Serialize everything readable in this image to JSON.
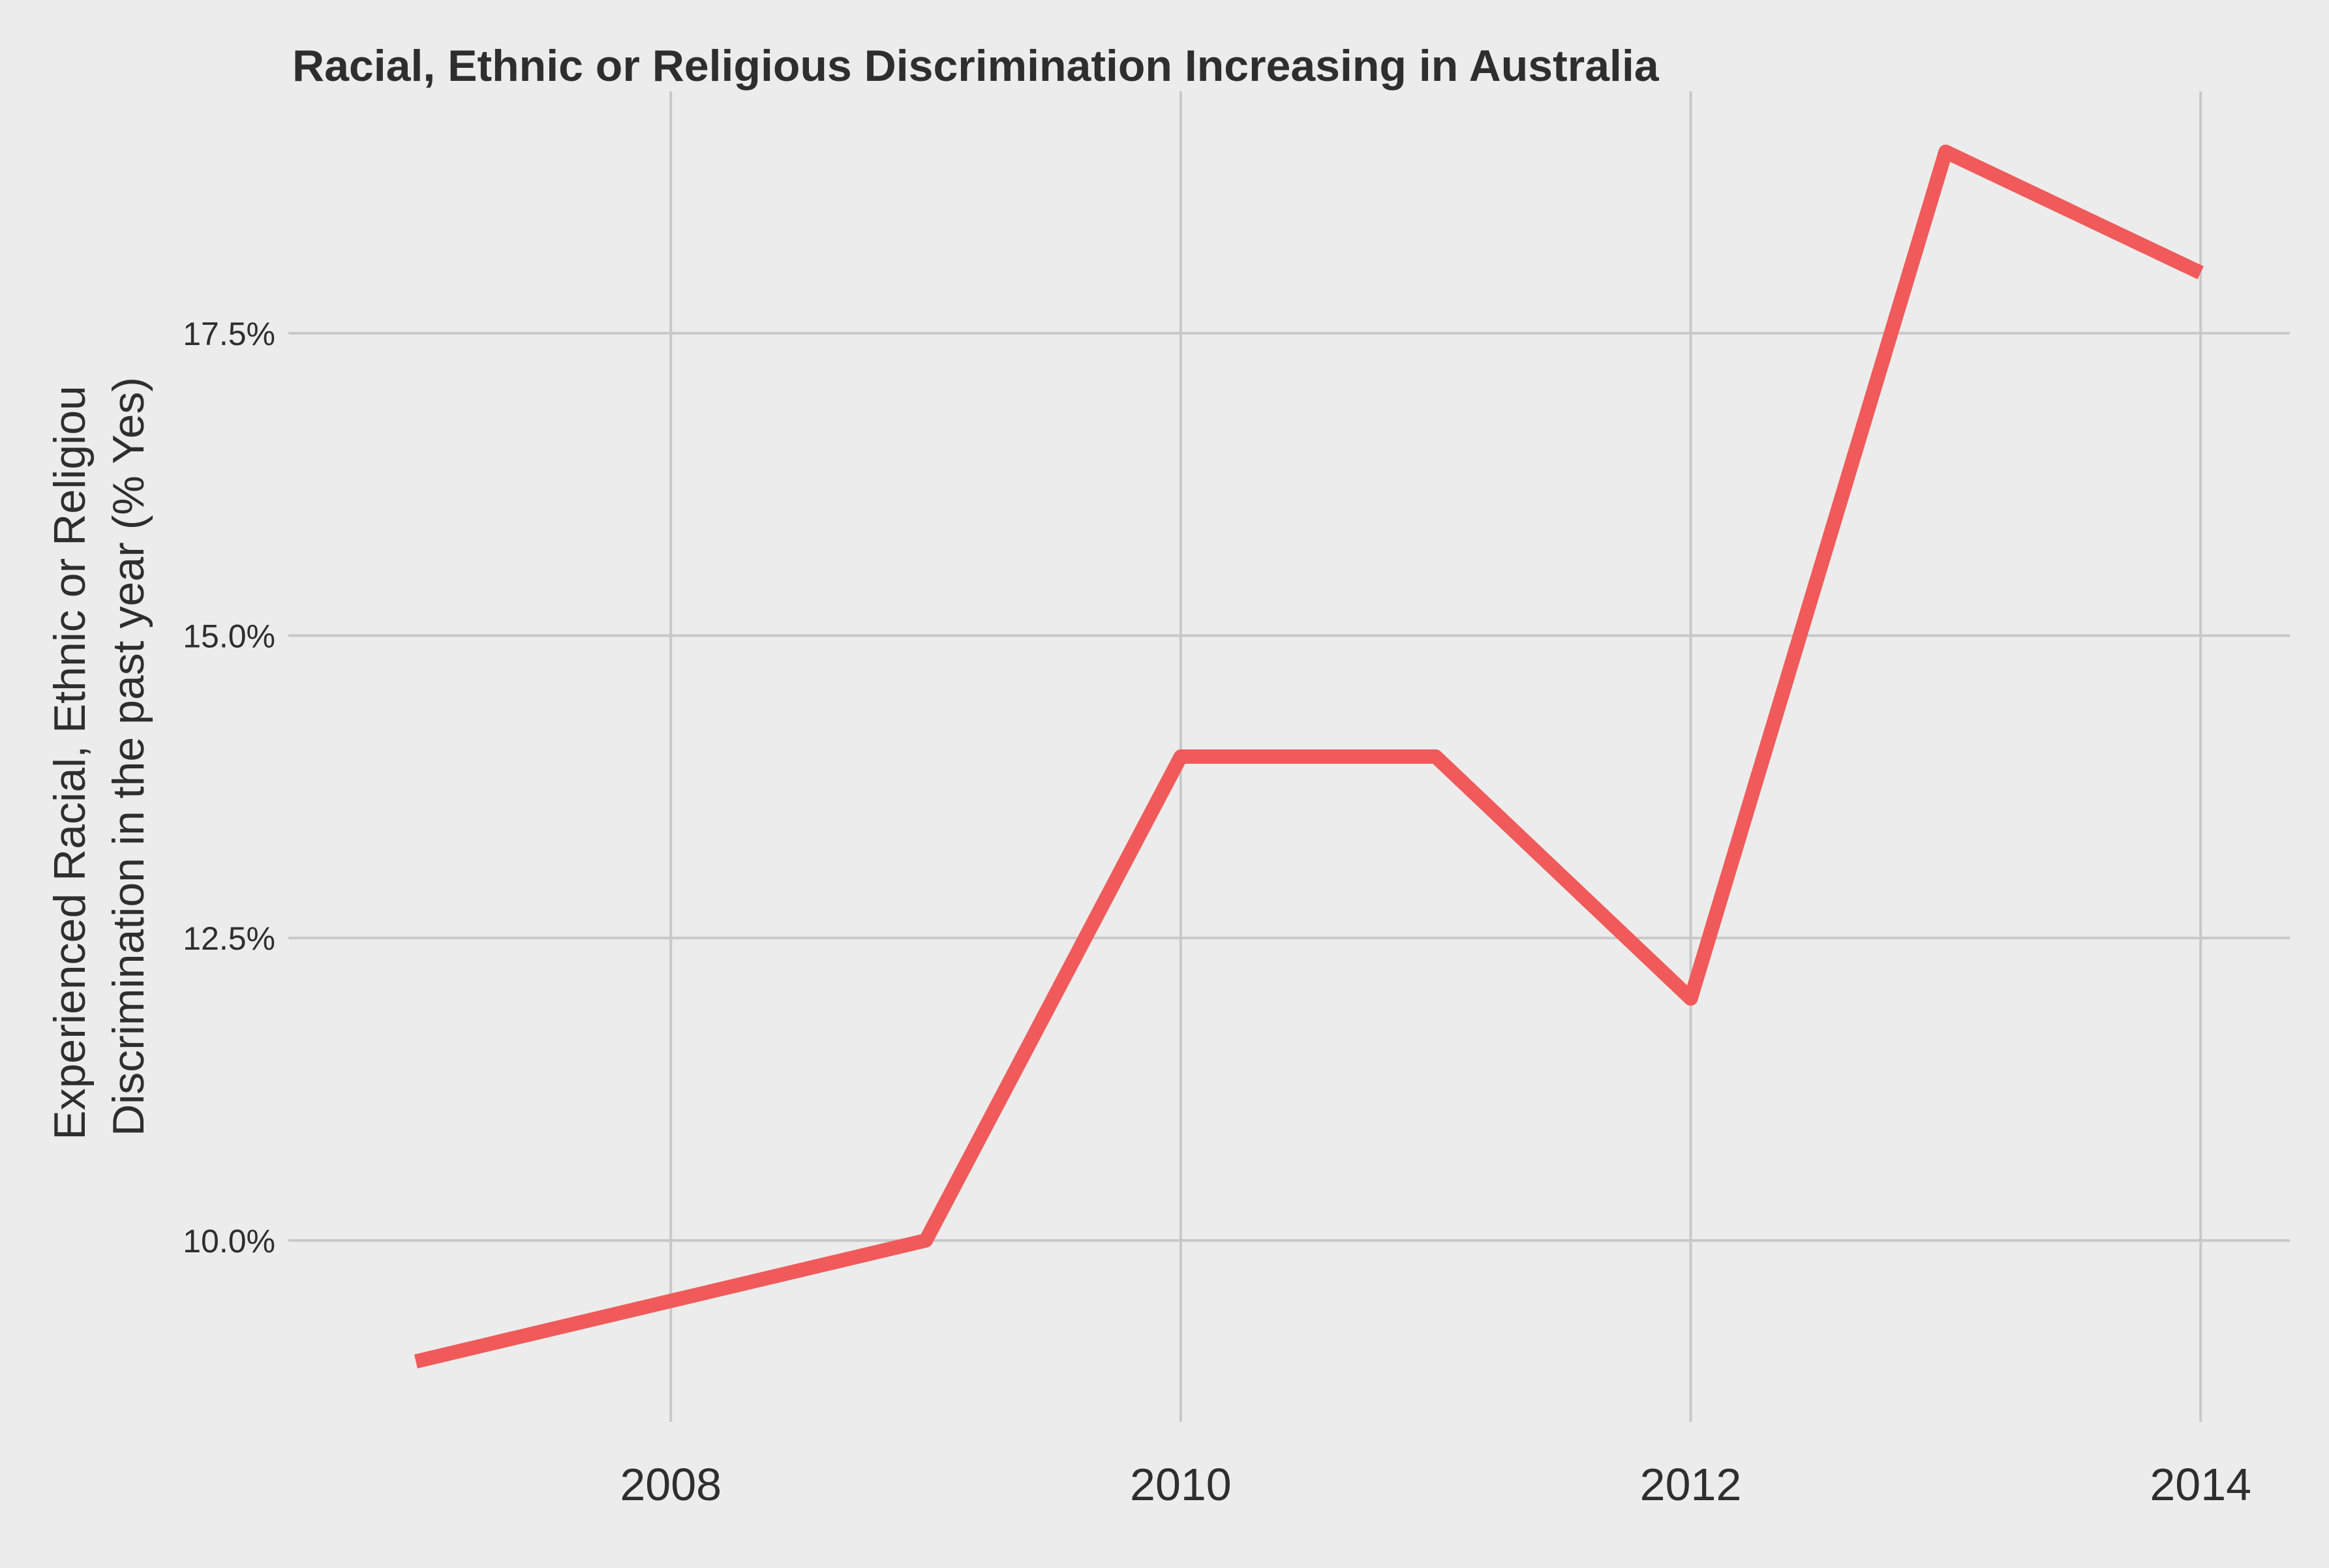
{
  "chart_data": {
    "type": "line",
    "title": "Racial, Ethnic or Religious Discrimination Increasing in Australia",
    "ylabel_lines": [
      "Experienced Racial, Ethnic or Religiou",
      "Discrimination in the past year (% Yes)"
    ],
    "xlabel": "",
    "x": [
      2007,
      2009,
      2010,
      2011,
      2012,
      2013,
      2014
    ],
    "series": [
      {
        "values": [
          9.0,
          10.0,
          14.0,
          14.0,
          12.0,
          19.0,
          18.0
        ],
        "color": "#f05a5a"
      }
    ],
    "xlim": [
      2006.5,
      2014.35
    ],
    "ylim": [
      8.5,
      19.5
    ],
    "xticks": [
      2008,
      2010,
      2012,
      2014
    ],
    "xtick_labels": [
      "2008",
      "2010",
      "2012",
      "2014"
    ],
    "yticks": [
      10.0,
      12.5,
      15.0,
      17.5
    ],
    "ytick_labels": [
      "10.0%",
      "12.5%",
      "15.0%",
      "17.5%"
    ],
    "grid": true,
    "legend": "none",
    "background_color": "#ececec",
    "grid_color": "#c8c8c8"
  }
}
